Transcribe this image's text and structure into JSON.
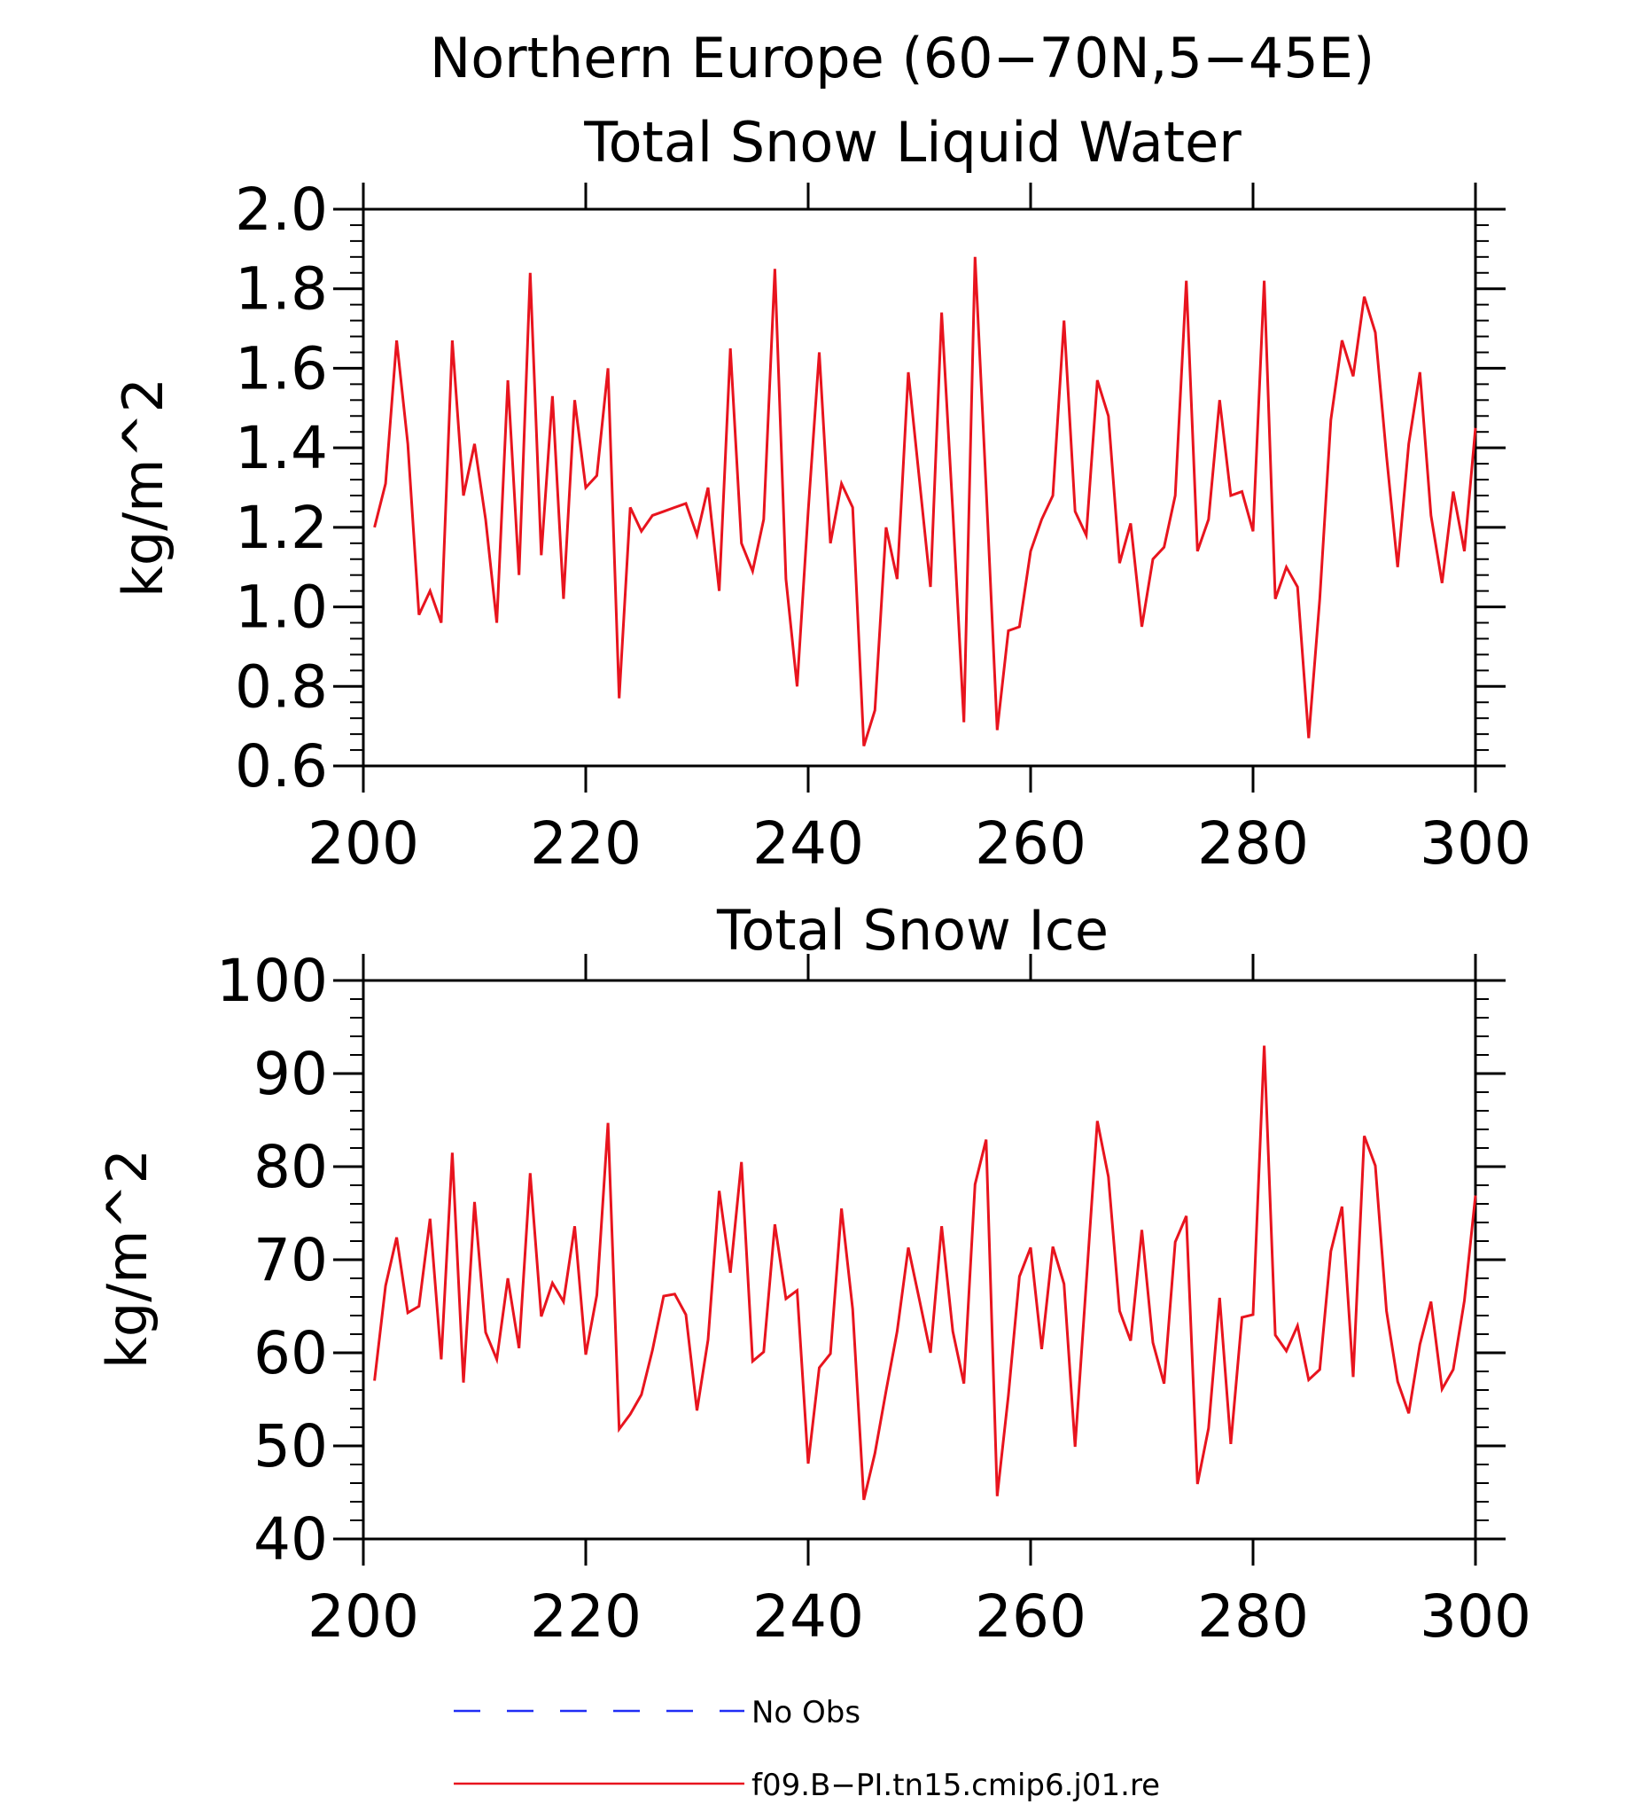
{
  "figure": {
    "title": "Northern Europe (60−70N,5−45E)"
  },
  "chart_data": [
    {
      "type": "line",
      "title": "Total Snow Liquid Water",
      "xlabel": "",
      "ylabel": "kg/m^2",
      "xlim": [
        200,
        300
      ],
      "ylim": [
        0.6,
        2.0
      ],
      "x_ticks": [
        "200",
        "220",
        "240",
        "260",
        "280",
        "300"
      ],
      "y_ticks": [
        "0.6",
        "0.8",
        "1.0",
        "1.2",
        "1.4",
        "1.6",
        "1.8",
        "2.0"
      ],
      "series": [
        {
          "name": "f09.B−PI.tn15.cmip6.j01.re",
          "color": "#e8141e",
          "x_start": 201,
          "x_step": 1,
          "values": [
            1.2,
            1.31,
            1.67,
            1.41,
            0.98,
            1.04,
            0.96,
            1.67,
            1.28,
            1.41,
            1.22,
            0.96,
            1.57,
            1.08,
            1.84,
            1.13,
            1.53,
            1.02,
            1.52,
            1.3,
            1.33,
            1.6,
            0.77,
            1.25,
            1.19,
            1.23,
            1.24,
            1.25,
            1.26,
            1.18,
            1.3,
            1.04,
            1.65,
            1.16,
            1.09,
            1.22,
            1.85,
            1.07,
            0.8,
            1.24,
            1.64,
            1.16,
            1.31,
            1.25,
            0.65,
            0.74,
            1.2,
            1.07,
            1.59,
            1.32,
            1.05,
            1.74,
            1.24,
            0.71,
            1.88,
            1.3,
            0.69,
            0.94,
            0.95,
            1.14,
            1.22,
            1.28,
            1.72,
            1.24,
            1.18,
            1.57,
            1.48,
            1.11,
            1.21,
            0.95,
            1.12,
            1.15,
            1.28,
            1.82,
            1.14,
            1.22,
            1.52,
            1.28,
            1.29,
            1.19,
            1.82,
            1.02,
            1.1,
            1.05,
            0.67,
            1.02,
            1.47,
            1.67,
            1.58,
            1.78,
            1.69,
            1.38,
            1.1,
            1.41,
            1.59,
            1.23,
            1.06,
            1.29,
            1.14,
            1.45
          ]
        }
      ]
    },
    {
      "type": "line",
      "title": "Total Snow Ice",
      "xlabel": "",
      "ylabel": "kg/m^2",
      "xlim": [
        200,
        300
      ],
      "ylim": [
        40,
        100
      ],
      "x_ticks": [
        "200",
        "220",
        "240",
        "260",
        "280",
        "300"
      ],
      "y_ticks": [
        "40",
        "50",
        "60",
        "70",
        "80",
        "90",
        "100"
      ],
      "series": [
        {
          "name": "f09.B−PI.tn15.cmip6.j01.re",
          "color": "#e8141e",
          "x_start": 201,
          "x_step": 1,
          "values": [
            57.0,
            67.2,
            72.4,
            64.3,
            65.0,
            74.4,
            59.3,
            81.5,
            56.8,
            76.2,
            62.2,
            59.3,
            68.0,
            60.5,
            79.3,
            63.9,
            67.5,
            65.5,
            73.6,
            59.8,
            66.2,
            84.7,
            51.8,
            53.4,
            55.5,
            60.3,
            66.1,
            66.3,
            64.1,
            53.8,
            61.4,
            77.4,
            68.6,
            80.5,
            59.1,
            60.1,
            73.8,
            65.8,
            66.7,
            48.1,
            58.4,
            59.9,
            75.5,
            64.7,
            44.2,
            49.2,
            55.9,
            62.3,
            71.3,
            65.7,
            60.0,
            73.6,
            62.3,
            56.7,
            78.1,
            82.9,
            44.6,
            55.4,
            68.2,
            71.3,
            60.4,
            71.4,
            67.4,
            49.9,
            67.5,
            84.9,
            78.9,
            64.5,
            61.3,
            73.2,
            61.1,
            56.7,
            71.9,
            74.7,
            45.9,
            51.9,
            65.9,
            50.2,
            63.8,
            64.1,
            93.0,
            61.9,
            60.2,
            62.9,
            57.1,
            58.2,
            70.9,
            75.7,
            57.4,
            83.3,
            80.1,
            64.5,
            56.9,
            53.5,
            60.9,
            65.5,
            56.1,
            58.2,
            65.6,
            76.9
          ]
        }
      ]
    }
  ],
  "legend": [
    {
      "label": "No Obs",
      "color": "#1f2cf5",
      "style": "dashed"
    },
    {
      "label": "f09.B−PI.tn15.cmip6.j01.re",
      "color": "#e8141e",
      "style": "solid"
    }
  ]
}
